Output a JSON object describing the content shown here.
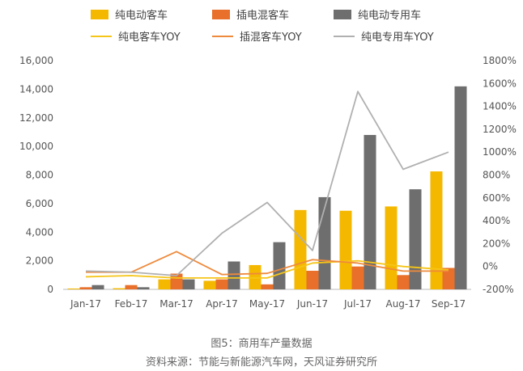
{
  "chart_data": {
    "type": "bar",
    "categories": [
      "Jan-17",
      "Feb-17",
      "Mar-17",
      "Apr-17",
      "May-17",
      "Jun-17",
      "Jul-17",
      "Aug-17",
      "Sep-17"
    ],
    "series": [
      {
        "name": "纯电动客车",
        "type": "bar",
        "axis": "left",
        "color": "#F5B800",
        "values": [
          60,
          80,
          700,
          600,
          1700,
          5550,
          5500,
          5800,
          8250
        ]
      },
      {
        "name": "插电混客车",
        "type": "bar",
        "axis": "left",
        "color": "#E8702A",
        "values": [
          150,
          300,
          1100,
          700,
          350,
          1300,
          1600,
          1000,
          1500
        ]
      },
      {
        "name": "纯电动专用车",
        "type": "bar",
        "axis": "left",
        "color": "#6E6E6E",
        "values": [
          300,
          150,
          700,
          1950,
          3300,
          6450,
          10800,
          7000,
          14200
        ]
      },
      {
        "name": "纯电客车YOY",
        "type": "line",
        "axis": "right",
        "color": "#F5C518",
        "values": [
          -90,
          -80,
          -100,
          -100,
          -100,
          30,
          50,
          0,
          -30
        ]
      },
      {
        "name": "插混客车YOY",
        "type": "line",
        "axis": "right",
        "color": "#EE8A3C",
        "values": [
          -50,
          -50,
          130,
          -70,
          -60,
          60,
          30,
          -40,
          -40
        ]
      },
      {
        "name": "纯电专用车YOY",
        "type": "line",
        "axis": "right",
        "color": "#B0B0B0",
        "values": [
          -40,
          -50,
          -80,
          290,
          560,
          140,
          1530,
          850,
          1000
        ]
      }
    ],
    "y_left": {
      "min": 0,
      "max": 16000,
      "step": 2000,
      "ticks": [
        "0",
        "2,000",
        "4,000",
        "6,000",
        "8,000",
        "10,000",
        "12,000",
        "14,000",
        "16,000"
      ]
    },
    "y_right": {
      "min": -200,
      "max": 1800,
      "step": 200,
      "ticks": [
        "-200%",
        "0%",
        "200%",
        "400%",
        "600%",
        "800%",
        "1000%",
        "1200%",
        "1400%",
        "1600%",
        "1800%"
      ]
    },
    "legend_position": "top",
    "grid": false
  },
  "captions": {
    "figure_title": "图5：商用车产量数据",
    "source": "资料来源：节能与新能源汽车网，天风证券研究所"
  }
}
